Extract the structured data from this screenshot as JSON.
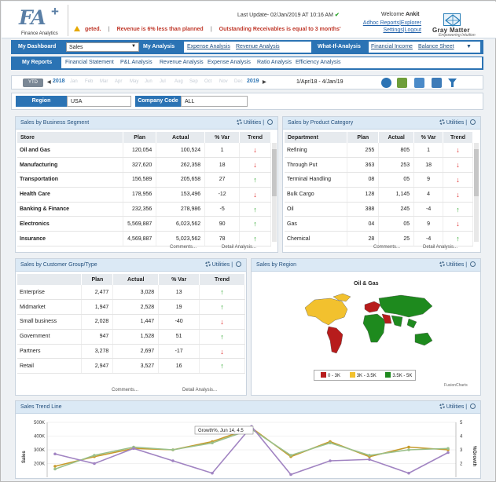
{
  "header": {
    "logo_text": "FA",
    "logo_plus": "+",
    "logo_sub": "Finance Analytics",
    "last_update": "Last Update- 02/Jan/2019 AT 10:16 AM",
    "ticker_items": [
      "geted.",
      "Revenue is 6% less than planned",
      "Outstanding Receivables is equal to 3 months'"
    ],
    "welcome_prefix": "Welcome",
    "welcome_user": "Ankit",
    "links": [
      "Adhoc Reports",
      "Explorer",
      "Settings",
      "Logout"
    ],
    "brand_name": "Gray Matter",
    "brand_sub": "Empowering Intuition"
  },
  "menu": {
    "dashboard_label": "My Dashboard",
    "dashboard_select": "Sales",
    "analysis_label": "My Analysis",
    "analysis_links": [
      "Expense Analysis",
      "Revenue Analysis"
    ],
    "whatif_label": "What-If-Analysis",
    "whatif_links": [
      "Financial Income",
      "Balance Sheet"
    ],
    "reports_label": "My Reports",
    "reports_links": [
      "Financial Statement",
      "P&L Analysis",
      "Revenue Analysis",
      "Expense Analysis",
      "Ratio Analysis",
      "Efficiency Analysis"
    ]
  },
  "datebar": {
    "mode": "YTD",
    "prev_year": "2018",
    "months": [
      "Jan",
      "Feb",
      "Mar",
      "Apr",
      "May",
      "Jun",
      "Jul",
      "Aug",
      "Sep",
      "Oct",
      "Nov",
      "Dec"
    ],
    "next_year": "2019",
    "range": "1/Apr/18 - 4/Jan/19"
  },
  "filters": {
    "region_label": "Region",
    "region_value": "USA",
    "company_label": "Company Code",
    "company_value": "ALL"
  },
  "common": {
    "utilities": "Utilities",
    "comments": "Comments...",
    "detail": "Detail Analysis..."
  },
  "segment": {
    "title": "Sales by Business Segment",
    "headers": [
      "Store",
      "Plan",
      "Actual",
      "% Var",
      "Trend"
    ],
    "rows": [
      {
        "name": "Oil and Gas",
        "plan": "120,054",
        "actual": "100,524",
        "var": "1",
        "trend": "down"
      },
      {
        "name": "Manufacturing",
        "plan": "327,620",
        "actual": "262,358",
        "var": "18",
        "trend": "down"
      },
      {
        "name": "Transportation",
        "plan": "156,589",
        "actual": "205,658",
        "var": "27",
        "trend": "up"
      },
      {
        "name": "Health Care",
        "plan": "178,956",
        "actual": "153,496",
        "var": "-12",
        "trend": "down"
      },
      {
        "name": "Banking & Finance",
        "plan": "232,356",
        "actual": "278,986",
        "var": "-5",
        "trend": "up"
      },
      {
        "name": "Electronics",
        "plan": "5,569,887",
        "actual": "6,023,562",
        "var": "90",
        "trend": "up"
      },
      {
        "name": "Insurance",
        "plan": "4,569,887",
        "actual": "5,023,562",
        "var": "78",
        "trend": "up"
      }
    ]
  },
  "product": {
    "title": "Sales by Product Category",
    "headers": [
      "Department",
      "Plan",
      "Actual",
      "% Var",
      "Trend"
    ],
    "rows": [
      {
        "name": "Refining",
        "plan": "255",
        "actual": "805",
        "var": "1",
        "trend": "down"
      },
      {
        "name": "Through Put",
        "plan": "363",
        "actual": "253",
        "var": "18",
        "trend": "down"
      },
      {
        "name": "Terminal Handling",
        "plan": "08",
        "actual": "05",
        "var": "9",
        "trend": "down"
      },
      {
        "name": "Bulk Cargo",
        "plan": "128",
        "actual": "1,145",
        "var": "4",
        "trend": "down"
      },
      {
        "name": "Oil",
        "plan": "388",
        "actual": "245",
        "var": "-4",
        "trend": "up"
      },
      {
        "name": "Gas",
        "plan": "04",
        "actual": "05",
        "var": "9",
        "trend": "down"
      },
      {
        "name": "Chemical",
        "plan": "28",
        "actual": "25",
        "var": "-4",
        "trend": "up"
      }
    ]
  },
  "customer": {
    "title": "Sales by Customer Group/Type",
    "headers": [
      "",
      "Plan",
      "Actual",
      "% Var",
      "Trend"
    ],
    "rows": [
      {
        "name": "Enterprise",
        "plan": "2,477",
        "actual": "3,028",
        "var": "13",
        "trend": "up"
      },
      {
        "name": "Midmarket",
        "plan": "1,947",
        "actual": "2,528",
        "var": "19",
        "trend": "up"
      },
      {
        "name": "Small business",
        "plan": "2,028",
        "actual": "1,447",
        "var": "-40",
        "trend": "down"
      },
      {
        "name": "Government",
        "plan": "947",
        "actual": "1,528",
        "var": "51",
        "trend": "up"
      },
      {
        "name": "Partners",
        "plan": "3,278",
        "actual": "2,697",
        "var": "-17",
        "trend": "down"
      },
      {
        "name": "Retail",
        "plan": "2,947",
        "actual": "3,527",
        "var": "16",
        "trend": "up"
      }
    ]
  },
  "region": {
    "title": "Sales by Region",
    "map_title": "Oil & Gas",
    "legend": [
      {
        "label": "0 - 3K",
        "color": "#b71c1c"
      },
      {
        "label": "3K - 3.5K",
        "color": "#f2c12e"
      },
      {
        "label": "3.5K - 5K",
        "color": "#1e8a1e"
      }
    ],
    "credit": "FusionCharts"
  },
  "trend": {
    "title": "Sales Trend Line",
    "ylabel": "Sales",
    "y2label": "%Growth",
    "tooltip": "Growth%, Jun 14, 4.5"
  },
  "chart_data": {
    "type": "line",
    "ylim": [
      100000,
      500000
    ],
    "y_ticks": [
      "500K",
      "400K",
      "300K",
      "200K"
    ],
    "y2_ticks": [
      "5",
      "4",
      "3",
      "2"
    ],
    "series": [
      {
        "values": [
          180000,
          250000,
          310000,
          300000,
          360000,
          460000,
          250000,
          360000,
          250000,
          320000,
          300000
        ]
      },
      {
        "values": [
          160000,
          260000,
          320000,
          300000,
          350000,
          450000,
          260000,
          350000,
          260000,
          300000,
          310000
        ]
      },
      {
        "values": [
          270000,
          200000,
          310000,
          220000,
          130000,
          470000,
          120000,
          220000,
          230000,
          130000,
          280000
        ]
      }
    ],
    "colors": [
      "#c79a2a",
      "#9ac08a",
      "#a184c2"
    ]
  }
}
